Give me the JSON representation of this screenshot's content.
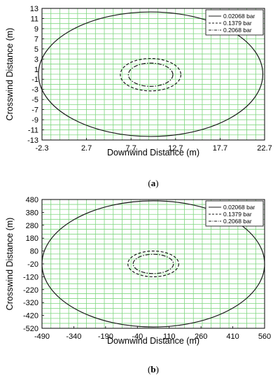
{
  "chart_data": [
    {
      "type": "line",
      "panel_label": "(a)",
      "panel_letter": "a",
      "xlabel": "Downwind Distance (m)",
      "ylabel": "Crosswind Distance (m)",
      "xlim": [
        -2.3,
        22.7
      ],
      "ylim": [
        -13,
        13
      ],
      "xticks": [
        -2.3,
        2.7,
        7.7,
        12.7,
        17.7,
        22.7
      ],
      "yticks": [
        -13,
        -11,
        -9,
        -7,
        -5,
        -3,
        -1,
        1,
        3,
        5,
        7,
        9,
        11,
        13
      ],
      "xtick_labels": [
        "-2.3",
        "2.7",
        "7.7",
        "12.7",
        "17.7",
        "22.7"
      ],
      "ytick_labels": [
        "-13",
        "-11",
        "-9",
        "-7",
        "-5",
        "-3",
        "-1",
        "1",
        "3",
        "5",
        "7",
        "9",
        "11",
        "13"
      ],
      "grid": true,
      "grid_color": "#7fd67f",
      "legend_position": "top-right",
      "series": [
        {
          "name": "0.02068 bar",
          "style": "solid",
          "center": [
            9.9,
            0
          ],
          "semi_axes": [
            12.6,
            12.3
          ]
        },
        {
          "name": "0.1379 bar",
          "style": "dashed",
          "center": [
            9.9,
            -0.1
          ],
          "semi_axes": [
            3.4,
            3.2
          ]
        },
        {
          "name": "0.2068 bar",
          "style": "dashdot",
          "center": [
            9.9,
            -0.1
          ],
          "semi_axes": [
            2.5,
            2.3
          ]
        }
      ]
    },
    {
      "type": "line",
      "panel_label": "(b)",
      "panel_letter": "b",
      "xlabel": "Downwind Distance (m)",
      "ylabel": "Crosswind Distance (m)",
      "xlim": [
        -490,
        560
      ],
      "ylim": [
        -520,
        480
      ],
      "xticks": [
        -490,
        -340,
        -190,
        -40,
        110,
        260,
        410,
        560
      ],
      "yticks": [
        -520,
        -420,
        -320,
        -220,
        -120,
        -20,
        80,
        180,
        280,
        380,
        480
      ],
      "xtick_labels": [
        "-490",
        "-340",
        "-190",
        "-40",
        "110",
        "260",
        "410",
        "560"
      ],
      "ytick_labels": [
        "-520",
        "-420",
        "-320",
        "-220",
        "-120",
        "-20",
        "80",
        "180",
        "280",
        "380",
        "480"
      ],
      "grid": true,
      "grid_color": "#7fd67f",
      "legend_position": "top-right",
      "series": [
        {
          "name": "0.02068 bar",
          "style": "solid",
          "center": [
            35,
            -20
          ],
          "semi_axes": [
            525,
            490
          ]
        },
        {
          "name": "0.1379 bar",
          "style": "dashed",
          "center": [
            35,
            -20
          ],
          "semi_axes": [
            120,
            100
          ]
        },
        {
          "name": "0.2068 bar",
          "style": "dashdot",
          "center": [
            35,
            -20
          ],
          "semi_axes": [
            95,
            75
          ]
        }
      ]
    }
  ]
}
